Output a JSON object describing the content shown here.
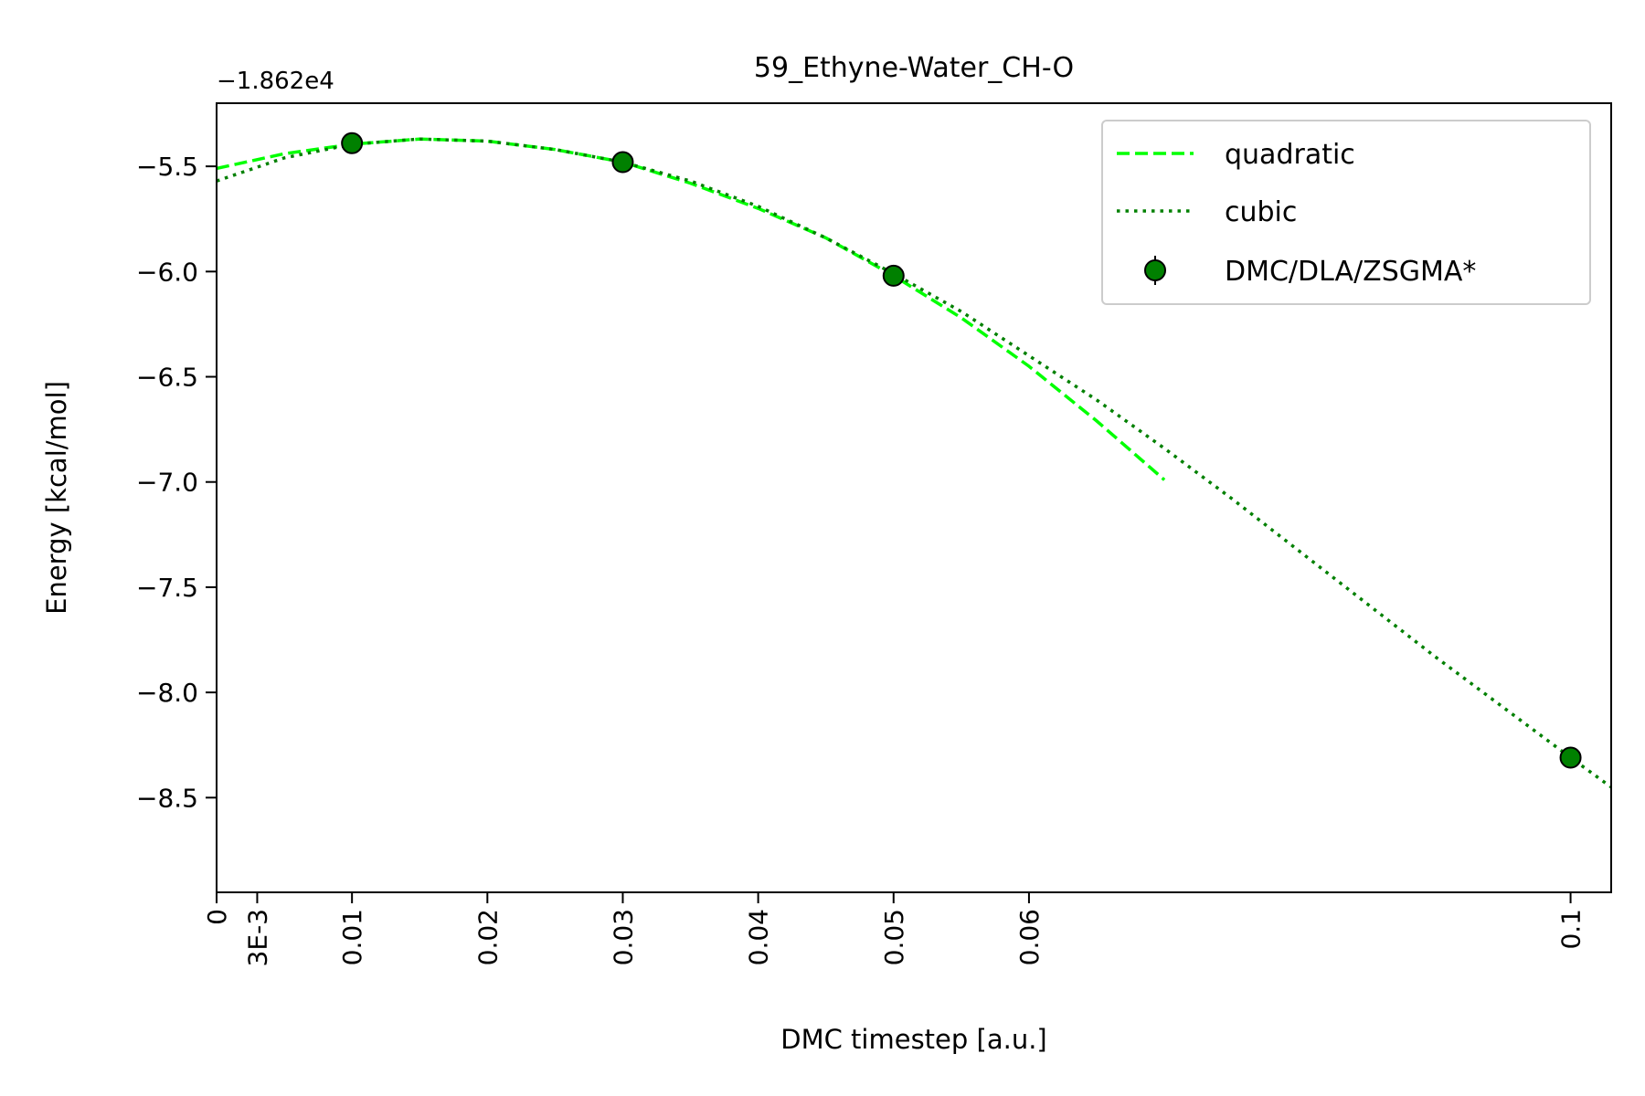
{
  "chart_data": {
    "type": "line",
    "title": "59_Ethyne-Water_CH-O",
    "xlabel": "DMC timestep [a.u.]",
    "ylabel": "Energy [kcal/mol]",
    "offset_label": "−1.862e4",
    "xlim": [
      0,
      0.103
    ],
    "ylim": [
      -8.95,
      -5.2
    ],
    "x_ticks": [
      {
        "value": 0,
        "label": "0"
      },
      {
        "value": 0.003,
        "label": "3E-3"
      },
      {
        "value": 0.01,
        "label": "0.01"
      },
      {
        "value": 0.02,
        "label": "0.02"
      },
      {
        "value": 0.03,
        "label": "0.03"
      },
      {
        "value": 0.04,
        "label": "0.04"
      },
      {
        "value": 0.05,
        "label": "0.05"
      },
      {
        "value": 0.06,
        "label": "0.06"
      },
      {
        "value": 0.1,
        "label": "0.1"
      }
    ],
    "y_ticks": [
      {
        "value": -5.5,
        "label": "−5.5"
      },
      {
        "value": -6.0,
        "label": "−6.0"
      },
      {
        "value": -6.5,
        "label": "−6.5"
      },
      {
        "value": -7.0,
        "label": "−7.0"
      },
      {
        "value": -7.5,
        "label": "−7.5"
      },
      {
        "value": -8.0,
        "label": "−8.0"
      },
      {
        "value": -8.5,
        "label": "−8.5"
      }
    ],
    "series": [
      {
        "name": "quadratic",
        "style": "dashed",
        "color": "#00ff00",
        "x": [
          0,
          0.005,
          0.01,
          0.015,
          0.02,
          0.025,
          0.03,
          0.035,
          0.04,
          0.045,
          0.05,
          0.055,
          0.06,
          0.065,
          0.07
        ],
        "y": [
          -5.51,
          -5.44,
          -5.395,
          -5.37,
          -5.38,
          -5.42,
          -5.48,
          -5.58,
          -5.7,
          -5.84,
          -6.02,
          -6.22,
          -6.45,
          -6.71,
          -6.99
        ]
      },
      {
        "name": "cubic",
        "style": "dotted",
        "color": "#008000",
        "x": [
          0,
          0.005,
          0.01,
          0.015,
          0.02,
          0.025,
          0.03,
          0.035,
          0.04,
          0.045,
          0.05,
          0.055,
          0.06,
          0.065,
          0.07,
          0.075,
          0.08,
          0.085,
          0.09,
          0.095,
          0.1,
          0.103
        ],
        "y": [
          -5.57,
          -5.46,
          -5.395,
          -5.37,
          -5.38,
          -5.42,
          -5.48,
          -5.57,
          -5.69,
          -5.84,
          -6.01,
          -6.19,
          -6.4,
          -6.61,
          -6.84,
          -7.08,
          -7.33,
          -7.58,
          -7.83,
          -8.07,
          -8.31,
          -8.45
        ]
      },
      {
        "name": "DMC/DLA/ZSGMA*",
        "style": "points",
        "color": "#008000",
        "x": [
          0.01,
          0.03,
          0.05,
          0.1
        ],
        "y": [
          -5.39,
          -5.48,
          -6.02,
          -8.31
        ]
      }
    ],
    "legend": {
      "placement": "top-right",
      "entries": [
        "quadratic",
        "cubic",
        "DMC/DLA/ZSGMA*"
      ]
    },
    "grid": false
  }
}
